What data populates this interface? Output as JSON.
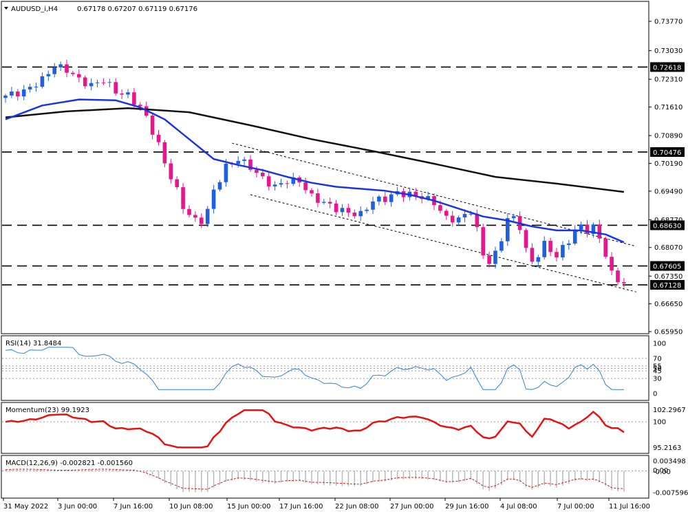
{
  "header": {
    "symbol": "AUDUSD_i,H4",
    "ohlc": "0.67178 0.67207 0.67119 0.67176"
  },
  "price_axis": {
    "ticks": [
      "0.73770",
      "0.73030",
      "0.72310",
      "0.71610",
      "0.70890",
      "0.70190",
      "0.69490",
      "0.68770",
      "0.68070",
      "0.67350",
      "0.66650",
      "0.65950"
    ]
  },
  "levels": [
    {
      "label": "0.72618",
      "value": 0.72618
    },
    {
      "label": "0.70476",
      "value": 0.70476
    },
    {
      "label": "0.68630",
      "value": 0.6863
    },
    {
      "label": "0.67605",
      "value": 0.67605
    },
    {
      "label": "0.67128",
      "value": 0.67128
    }
  ],
  "time_axis": [
    "31 May 2022",
    "3 Jun 00:00",
    "7 Jun 16:00",
    "10 Jun 08:00",
    "15 Jun 00:00",
    "17 Jun 16:00",
    "22 Jun 08:00",
    "27 Jun 00:00",
    "29 Jun 16:00",
    "4 Jul 08:00",
    "7 Jul 00:00",
    "11 Jul 16:00"
  ],
  "rsi": {
    "label": "RSI(14) 31.8484",
    "ticks": [
      "100",
      "70",
      "55",
      "50",
      "45",
      "30",
      "0"
    ]
  },
  "momentum": {
    "label": "Momentum(23) 99.1923",
    "ticks": [
      "102.2967",
      "100",
      "95.2163"
    ]
  },
  "macd": {
    "label": "MACD(12,26,9) -0.002821 -0.001560",
    "ticks": [
      "0.003498",
      "0.00",
      "-0.00",
      "-0.007596"
    ]
  },
  "colors": {
    "bull": "#1f5fe0",
    "bear": "#e8158c",
    "ma_fast": "#1a33e8",
    "ma_slow": "#111111",
    "rsi": "#2f7ee3",
    "momentum": "#e81010",
    "macd_hist": "#b8b8b8",
    "macd_signal": "#e81010"
  },
  "chart_data": {
    "type": "candlestick",
    "symbol": "AUDUSD_i",
    "timeframe": "H4",
    "price_range": [
      0.6595,
      0.741
    ],
    "close_path": [
      [
        0,
        0.719
      ],
      [
        3,
        0.72
      ],
      [
        6,
        0.723
      ],
      [
        8,
        0.7265
      ],
      [
        10,
        0.7255
      ],
      [
        12,
        0.723
      ],
      [
        14,
        0.7215
      ],
      [
        16,
        0.723
      ],
      [
        18,
        0.72
      ],
      [
        20,
        0.719
      ],
      [
        22,
        0.716
      ],
      [
        23,
        0.7135
      ],
      [
        24,
        0.71
      ],
      [
        25,
        0.7065
      ],
      [
        26,
        0.702
      ],
      [
        27,
        0.6985
      ],
      [
        28,
        0.695
      ],
      [
        29,
        0.691
      ],
      [
        30,
        0.689
      ],
      [
        31,
        0.6875
      ],
      [
        32,
        0.6875
      ],
      [
        33,
        0.69
      ],
      [
        34,
        0.695
      ],
      [
        36,
        0.701
      ],
      [
        38,
        0.703
      ],
      [
        40,
        0.701
      ],
      [
        42,
        0.698
      ],
      [
        44,
        0.696
      ],
      [
        46,
        0.6975
      ],
      [
        48,
        0.6975
      ],
      [
        50,
        0.6935
      ],
      [
        52,
        0.692
      ],
      [
        54,
        0.6905
      ],
      [
        56,
        0.6895
      ],
      [
        58,
        0.689
      ],
      [
        60,
        0.6925
      ],
      [
        62,
        0.693
      ],
      [
        64,
        0.6945
      ],
      [
        66,
        0.694
      ],
      [
        68,
        0.6935
      ],
      [
        70,
        0.692
      ],
      [
        72,
        0.688
      ],
      [
        74,
        0.6878
      ],
      [
        76,
        0.69
      ],
      [
        77,
        0.685
      ],
      [
        78,
        0.679
      ],
      [
        79,
        0.677
      ],
      [
        80,
        0.679
      ],
      [
        81,
        0.683
      ],
      [
        82,
        0.688
      ],
      [
        83,
        0.688
      ],
      [
        84,
        0.686
      ],
      [
        85,
        0.68
      ],
      [
        86,
        0.677
      ],
      [
        87,
        0.679
      ],
      [
        88,
        0.6815
      ],
      [
        89,
        0.68
      ],
      [
        90,
        0.6785
      ],
      [
        91,
        0.6805
      ],
      [
        92,
        0.6825
      ],
      [
        93,
        0.685
      ],
      [
        94,
        0.686
      ],
      [
        95,
        0.685
      ],
      [
        96,
        0.6858
      ],
      [
        97,
        0.683
      ],
      [
        98,
        0.679
      ],
      [
        99,
        0.674
      ],
      [
        100,
        0.6725
      ],
      [
        101,
        0.6718
      ]
    ],
    "ma_fast": [
      [
        0,
        0.713
      ],
      [
        6,
        0.7165
      ],
      [
        12,
        0.718
      ],
      [
        18,
        0.7178
      ],
      [
        22,
        0.716
      ],
      [
        26,
        0.713
      ],
      [
        30,
        0.708
      ],
      [
        34,
        0.703
      ],
      [
        38,
        0.7015
      ],
      [
        42,
        0.7002
      ],
      [
        46,
        0.6985
      ],
      [
        50,
        0.697
      ],
      [
        54,
        0.696
      ],
      [
        58,
        0.6955
      ],
      [
        62,
        0.695
      ],
      [
        66,
        0.694
      ],
      [
        70,
        0.6925
      ],
      [
        74,
        0.6905
      ],
      [
        78,
        0.6885
      ],
      [
        82,
        0.6875
      ],
      [
        86,
        0.686
      ],
      [
        90,
        0.685
      ],
      [
        94,
        0.685
      ],
      [
        98,
        0.684
      ],
      [
        101,
        0.682
      ]
    ],
    "ma_slow": [
      [
        0,
        0.7135
      ],
      [
        10,
        0.715
      ],
      [
        20,
        0.7158
      ],
      [
        30,
        0.7148
      ],
      [
        40,
        0.7115
      ],
      [
        50,
        0.708
      ],
      [
        60,
        0.705
      ],
      [
        70,
        0.7018
      ],
      [
        80,
        0.6985
      ],
      [
        90,
        0.6968
      ],
      [
        101,
        0.6947
      ]
    ],
    "channel_upper": [
      [
        37,
        0.707
      ],
      [
        103,
        0.681
      ]
    ],
    "channel_lower": [
      [
        40,
        0.694
      ],
      [
        103,
        0.6695
      ]
    ]
  }
}
